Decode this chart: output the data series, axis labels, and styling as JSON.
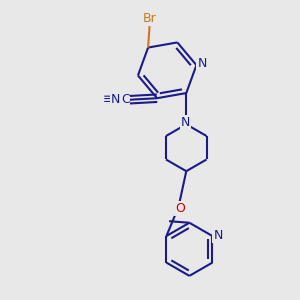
{
  "background_color": "#e8e8e8",
  "bond_color": "#1a1a8c",
  "bond_width": 1.5,
  "br_color": "#cc7722",
  "n_color": "#1a1a8c",
  "o_color": "#cc0000",
  "figsize": [
    3.0,
    3.0
  ],
  "dpi": 100,
  "xlim": [
    0.05,
    0.95
  ],
  "ylim": [
    0.02,
    0.98
  ]
}
